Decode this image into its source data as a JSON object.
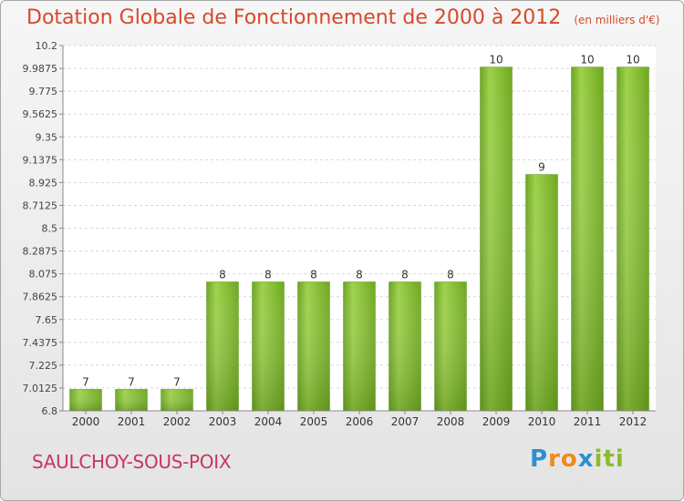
{
  "chart_data": {
    "type": "bar",
    "title": "Dotation Globale de Fonctionnement de 2000 à 2012",
    "subtitle": "(en milliers d'€)",
    "categories": [
      "2000",
      "2001",
      "2002",
      "2003",
      "2004",
      "2005",
      "2006",
      "2007",
      "2008",
      "2009",
      "2010",
      "2011",
      "2012"
    ],
    "values": [
      7,
      7,
      7,
      8,
      8,
      8,
      8,
      8,
      8,
      10,
      9,
      10,
      10
    ],
    "data_labels": [
      "7",
      "7",
      "7",
      "8",
      "8",
      "8",
      "8",
      "8",
      "8",
      "10",
      "9",
      "10",
      "10"
    ],
    "ylim": [
      6.8,
      10.2
    ],
    "yticks": [
      "10.2",
      "9.9875",
      "9.775",
      "9.5625",
      "9.35",
      "9.1375",
      "8.925",
      "8.7125",
      "8.5",
      "8.2875",
      "8.075",
      "7.8625",
      "7.65",
      "7.4375",
      "7.225",
      "7.0125",
      "6.8"
    ],
    "grid": true,
    "bar_color": "#7fba2e"
  },
  "commune": "SAULCHOY-SOUS-POIX",
  "logo": {
    "letters": [
      "P",
      "r",
      "o",
      "x",
      "i",
      "t",
      "i"
    ],
    "colors": [
      "#2e8fd0",
      "#f08a1c",
      "#f08a1c",
      "#2e8fd0",
      "#8bbd2a",
      "#8bbd2a",
      "#8bbd2a"
    ]
  }
}
